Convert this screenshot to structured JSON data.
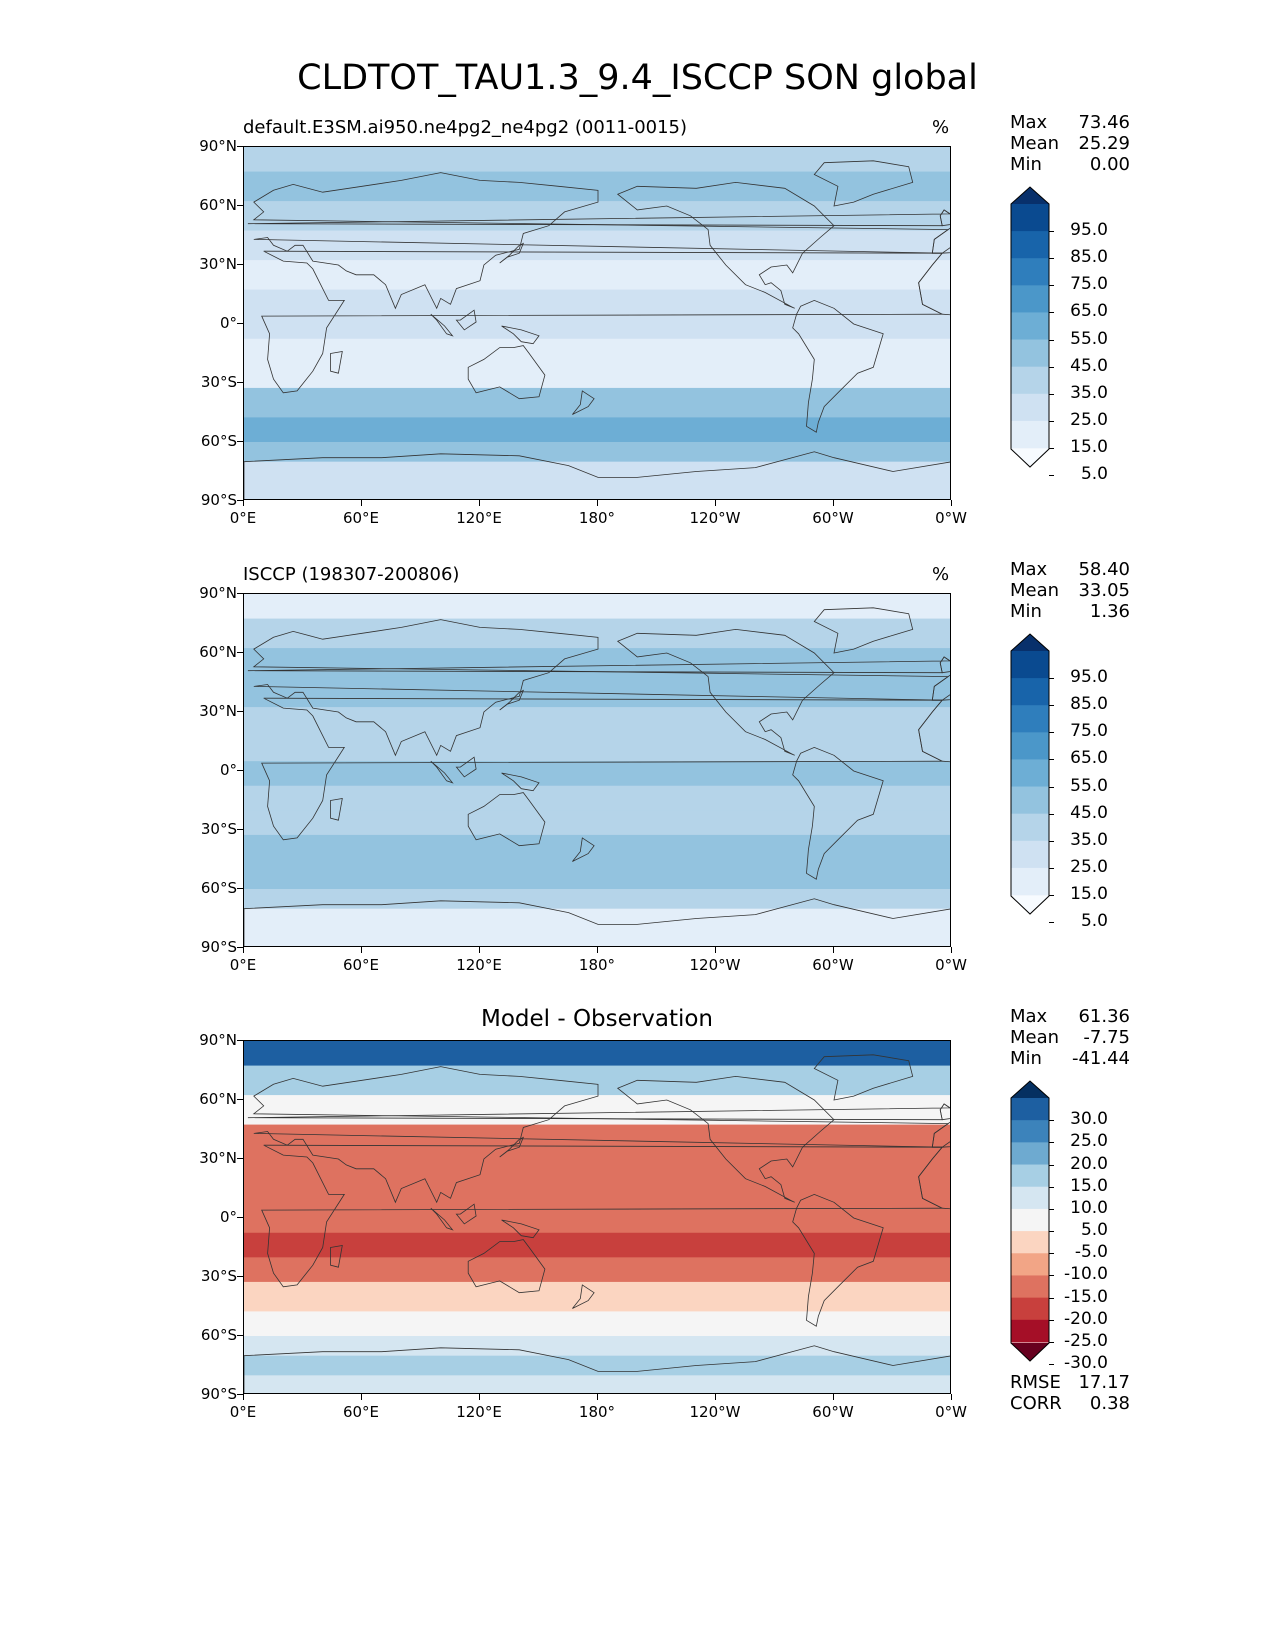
{
  "figure_title": "CLDTOT_TAU1.3_9.4_ISCCP SON global",
  "chart_data": [
    {
      "type": "heatmap",
      "panel": "test",
      "title": "default.E3SM.ai950.ne4pg2_ne4pg2 (0011-0015)",
      "units": "%",
      "xlabel": "",
      "ylabel": "",
      "xlim": [
        0,
        360
      ],
      "ylim": [
        -90,
        90
      ],
      "x_ticks": [
        "0°E",
        "60°E",
        "120°E",
        "180°",
        "120°W",
        "60°W",
        "0°W"
      ],
      "y_ticks": [
        "90°N",
        "60°N",
        "30°N",
        "0°",
        "30°S",
        "60°S",
        "90°S"
      ],
      "stats": {
        "Max": "73.46",
        "Mean": "25.29",
        "Min": "0.00"
      },
      "colorbar_levels": [
        "95.0",
        "85.0",
        "75.0",
        "65.0",
        "55.0",
        "45.0",
        "35.0",
        "25.0",
        "15.0",
        "5.0"
      ],
      "colorbar_colors": [
        "#f7fbff",
        "#e3eef9",
        "#cfe1f2",
        "#b5d4e9",
        "#93c3df",
        "#6daed5",
        "#4b97c9",
        "#2f7ebc",
        "#1864aa",
        "#0a4a90",
        "#08306b"
      ],
      "zonal_mean": [
        {
          "lat": 85,
          "value": 30
        },
        {
          "lat": 70,
          "value": 45
        },
        {
          "lat": 55,
          "value": 35
        },
        {
          "lat": 40,
          "value": 20
        },
        {
          "lat": 25,
          "value": 12
        },
        {
          "lat": 10,
          "value": 18
        },
        {
          "lat": 0,
          "value": 20
        },
        {
          "lat": -15,
          "value": 15
        },
        {
          "lat": -25,
          "value": 15
        },
        {
          "lat": -40,
          "value": 40
        },
        {
          "lat": -55,
          "value": 50
        },
        {
          "lat": -65,
          "value": 38
        },
        {
          "lat": -75,
          "value": 20
        },
        {
          "lat": -85,
          "value": 22
        }
      ]
    },
    {
      "type": "heatmap",
      "panel": "reference",
      "title": "ISCCP (198307-200806)",
      "units": "%",
      "xlabel": "",
      "ylabel": "",
      "xlim": [
        0,
        360
      ],
      "ylim": [
        -90,
        90
      ],
      "x_ticks": [
        "0°E",
        "60°E",
        "120°E",
        "180°",
        "120°W",
        "60°W",
        "0°W"
      ],
      "y_ticks": [
        "90°N",
        "60°N",
        "30°N",
        "0°",
        "30°S",
        "60°S",
        "90°S"
      ],
      "stats": {
        "Max": "58.40",
        "Mean": "33.05",
        "Min": "1.36"
      },
      "colorbar_levels": [
        "95.0",
        "85.0",
        "75.0",
        "65.0",
        "55.0",
        "45.0",
        "35.0",
        "25.0",
        "15.0",
        "5.0"
      ],
      "colorbar_colors": [
        "#f7fbff",
        "#e3eef9",
        "#cfe1f2",
        "#b5d4e9",
        "#93c3df",
        "#6daed5",
        "#4b97c9",
        "#2f7ebc",
        "#1864aa",
        "#0a4a90",
        "#08306b"
      ],
      "zonal_mean": [
        {
          "lat": 85,
          "value": 15
        },
        {
          "lat": 70,
          "value": 35
        },
        {
          "lat": 55,
          "value": 40
        },
        {
          "lat": 40,
          "value": 38
        },
        {
          "lat": 25,
          "value": 30
        },
        {
          "lat": 10,
          "value": 35
        },
        {
          "lat": 0,
          "value": 38
        },
        {
          "lat": -15,
          "value": 33
        },
        {
          "lat": -25,
          "value": 35
        },
        {
          "lat": -40,
          "value": 42
        },
        {
          "lat": -55,
          "value": 45
        },
        {
          "lat": -65,
          "value": 30
        },
        {
          "lat": -75,
          "value": 10
        },
        {
          "lat": -85,
          "value": 12
        }
      ]
    },
    {
      "type": "heatmap",
      "panel": "difference",
      "title": "Model - Observation",
      "units": "",
      "xlabel": "",
      "ylabel": "",
      "xlim": [
        0,
        360
      ],
      "ylim": [
        -90,
        90
      ],
      "x_ticks": [
        "0°E",
        "60°E",
        "120°E",
        "180°",
        "120°W",
        "60°W",
        "0°W"
      ],
      "y_ticks": [
        "90°N",
        "60°N",
        "30°N",
        "0°",
        "30°S",
        "60°S",
        "90°S"
      ],
      "stats": {
        "Max": "61.36",
        "Mean": "-7.75",
        "Min": "-41.44"
      },
      "extra_stats": {
        "RMSE": "17.17",
        "CORR": "0.38"
      },
      "colorbar_levels": [
        "30.0",
        "25.0",
        "20.0",
        "15.0",
        "10.0",
        "5.0",
        "-5.0",
        "-10.0",
        "-15.0",
        "-20.0",
        "-25.0",
        "-30.0"
      ],
      "colorbar_colors": [
        "#67001f",
        "#a50f27",
        "#c8403d",
        "#de7260",
        "#f2a586",
        "#fbd5c1",
        "#f5f5f5",
        "#d5e6f1",
        "#a7cfe4",
        "#6eaad0",
        "#3c83bb",
        "#1d5fa1",
        "#053061"
      ],
      "zonal_mean": [
        {
          "lat": 85,
          "value": 30
        },
        {
          "lat": 70,
          "value": 12
        },
        {
          "lat": 55,
          "value": -3
        },
        {
          "lat": 40,
          "value": -15
        },
        {
          "lat": 25,
          "value": -18
        },
        {
          "lat": 10,
          "value": -15
        },
        {
          "lat": 0,
          "value": -18
        },
        {
          "lat": -15,
          "value": -20
        },
        {
          "lat": -25,
          "value": -18
        },
        {
          "lat": -40,
          "value": -5
        },
        {
          "lat": -55,
          "value": 5
        },
        {
          "lat": -65,
          "value": 10
        },
        {
          "lat": -75,
          "value": 12
        },
        {
          "lat": -85,
          "value": 8
        }
      ]
    }
  ]
}
